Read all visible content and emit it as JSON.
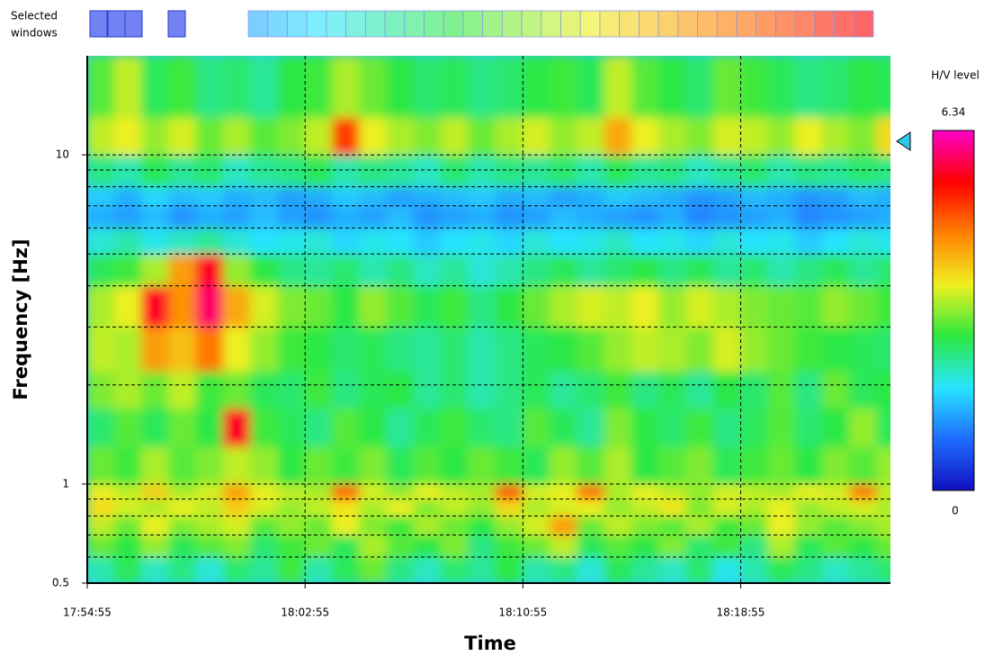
{
  "chart_data": {
    "type": "heatmap",
    "selected_windows_label": [
      "Selected",
      "windows"
    ],
    "xlabel": "Time",
    "ylabel": "Frequency [Hz]",
    "xlim": [
      "17:54:55",
      "18:24:25"
    ],
    "xticks": [
      "17:54:55",
      "18:02:55",
      "18:10:55",
      "18:18:55"
    ],
    "ylim": [
      0.5,
      20
    ],
    "yscale": "log",
    "yticks": [
      0.5,
      1,
      10
    ],
    "minor_yticks": [
      0.6,
      0.7,
      0.8,
      0.9,
      2,
      3,
      4,
      5,
      6,
      7,
      8,
      9
    ],
    "grid": true,
    "colorbar": {
      "title": "H/V level",
      "min": 0,
      "max": 6.34,
      "colors": [
        "#1010c0",
        "#1e6cff",
        "#28e6ff",
        "#2ce840",
        "#f0f020",
        "#ff8000",
        "#ff0000",
        "#ff00c8"
      ]
    },
    "time_edges": [
      "17:54:55",
      "17:55:55",
      "17:56:55",
      "17:57:55",
      "17:58:55",
      "17:59:55",
      "18:00:55",
      "18:01:55",
      "18:02:55",
      "18:03:55",
      "18:04:55",
      "18:05:55",
      "18:06:55",
      "18:07:55",
      "18:08:55",
      "18:09:55",
      "18:10:55",
      "18:11:55",
      "18:12:55",
      "18:13:55",
      "18:14:55",
      "18:15:55",
      "18:16:55",
      "18:17:55",
      "18:18:55",
      "18:19:55",
      "18:20:55",
      "18:21:55",
      "18:22:55",
      "18:23:55",
      "18:24:55"
    ],
    "freq_edges": [
      0.5,
      0.6,
      0.7,
      0.8,
      0.9,
      1,
      1.3,
      1.7,
      2.2,
      3,
      4,
      5,
      6,
      7,
      8,
      10,
      13,
      20
    ],
    "values": [
      [
        2.2,
        2.6,
        2.1,
        2.4,
        2.0,
        2.5,
        2.3,
        2.8,
        2.2,
        2.6,
        3.0,
        2.4,
        2.1,
        2.5,
        2.3,
        2.7,
        2.2,
        2.4,
        2.0,
        2.6,
        2.3,
        2.1,
        2.5,
        1.9,
        2.2,
        2.6,
        2.4,
        2.1,
        2.3,
        2.5
      ],
      [
        3.0,
        2.7,
        3.2,
        2.6,
        2.9,
        3.1,
        2.5,
        2.8,
        3.0,
        2.6,
        3.3,
        2.9,
        2.7,
        3.1,
        2.4,
        2.8,
        3.0,
        3.4,
        2.6,
        2.9,
        2.7,
        3.1,
        2.5,
        2.8,
        2.4,
        3.3,
        2.6,
        2.9,
        2.7,
        3.0
      ],
      [
        3.4,
        3.0,
        3.6,
        3.1,
        3.3,
        3.5,
        2.9,
        3.2,
        3.0,
        3.6,
        3.1,
        2.8,
        3.3,
        3.0,
        2.7,
        3.2,
        3.5,
        4.3,
        3.0,
        3.4,
        3.1,
        2.9,
        3.3,
        2.8,
        3.0,
        3.6,
        3.2,
        2.9,
        3.1,
        3.3
      ],
      [
        3.8,
        3.5,
        3.3,
        3.6,
        3.4,
        3.9,
        3.5,
        3.2,
        3.4,
        3.7,
        3.3,
        3.6,
        3.1,
        3.4,
        3.2,
        3.8,
        3.3,
        3.5,
        3.6,
        3.2,
        3.4,
        3.7,
        3.1,
        3.5,
        3.3,
        3.6,
        3.2,
        3.4,
        3.5,
        3.3
      ],
      [
        3.6,
        3.4,
        3.9,
        3.3,
        3.5,
        4.3,
        3.6,
        3.4,
        3.3,
        4.8,
        3.5,
        3.2,
        3.6,
        3.4,
        3.3,
        4.9,
        3.5,
        3.6,
        4.7,
        3.3,
        3.6,
        3.4,
        3.2,
        3.5,
        3.4,
        3.3,
        3.6,
        3.5,
        4.6,
        3.4
      ],
      [
        3.0,
        2.8,
        3.3,
        2.9,
        3.1,
        3.4,
        3.2,
        2.7,
        3.0,
        2.8,
        3.1,
        2.6,
        2.9,
        2.7,
        3.0,
        2.8,
        2.6,
        3.2,
        2.9,
        3.3,
        2.7,
        2.9,
        3.1,
        2.6,
        2.8,
        3.0,
        2.7,
        3.1,
        2.9,
        3.2
      ],
      [
        2.5,
        2.9,
        2.6,
        3.0,
        2.7,
        5.6,
        2.8,
        2.6,
        2.4,
        2.9,
        2.7,
        2.3,
        2.6,
        2.8,
        2.5,
        2.4,
        2.9,
        2.6,
        2.3,
        3.1,
        2.7,
        2.5,
        2.8,
        2.4,
        2.6,
        2.9,
        2.5,
        2.7,
        3.2,
        2.6
      ],
      [
        3.1,
        3.3,
        3.0,
        3.4,
        2.8,
        3.0,
        2.6,
        2.5,
        2.8,
        2.4,
        2.6,
        2.7,
        2.3,
        2.5,
        2.2,
        2.4,
        2.6,
        2.3,
        2.5,
        2.8,
        2.4,
        2.6,
        2.3,
        2.7,
        2.5,
        2.9,
        2.4,
        3.0,
        2.6,
        2.7
      ],
      [
        3.4,
        3.3,
        4.3,
        4.0,
        4.6,
        3.6,
        3.2,
        2.8,
        2.7,
        2.5,
        2.6,
        2.4,
        2.3,
        2.5,
        2.2,
        2.4,
        2.6,
        2.7,
        2.9,
        3.2,
        3.4,
        3.3,
        3.1,
        3.5,
        3.2,
        3.0,
        2.8,
        2.7,
        2.6,
        2.5
      ],
      [
        3.3,
        3.6,
        5.6,
        4.4,
        5.9,
        4.2,
        3.5,
        3.1,
        3.0,
        2.7,
        3.2,
        2.9,
        2.6,
        2.8,
        2.4,
        2.7,
        3.0,
        3.3,
        3.5,
        3.4,
        3.6,
        3.2,
        3.5,
        3.3,
        3.1,
        3.0,
        2.9,
        3.2,
        3.0,
        2.8
      ],
      [
        2.6,
        2.8,
        3.3,
        4.3,
        5.6,
        3.2,
        2.7,
        2.4,
        2.3,
        2.5,
        2.2,
        2.4,
        2.1,
        2.3,
        2.0,
        2.2,
        2.4,
        2.6,
        2.3,
        2.5,
        2.7,
        2.4,
        2.6,
        2.3,
        2.5,
        2.2,
        2.4,
        2.6,
        2.3,
        2.5
      ],
      [
        2.0,
        2.2,
        1.9,
        2.1,
        2.3,
        2.0,
        1.8,
        1.9,
        2.0,
        1.7,
        1.9,
        1.8,
        1.6,
        1.8,
        1.9,
        1.7,
        2.0,
        1.8,
        1.9,
        2.1,
        1.8,
        1.9,
        1.7,
        2.0,
        1.8,
        1.9,
        1.6,
        1.8,
        2.0,
        1.9
      ],
      [
        1.4,
        1.3,
        1.5,
        1.2,
        1.4,
        1.3,
        1.5,
        1.3,
        1.2,
        1.4,
        1.3,
        1.5,
        1.2,
        1.3,
        1.4,
        1.2,
        1.3,
        1.5,
        1.4,
        1.3,
        1.2,
        1.4,
        1.1,
        1.2,
        1.3,
        1.4,
        1.1,
        1.2,
        1.3,
        1.4
      ],
      [
        1.6,
        1.4,
        1.7,
        1.5,
        1.6,
        1.4,
        1.5,
        1.3,
        1.4,
        1.6,
        1.5,
        1.3,
        1.4,
        1.5,
        1.6,
        1.4,
        1.5,
        1.3,
        1.4,
        1.6,
        1.5,
        1.4,
        1.2,
        1.3,
        1.5,
        1.4,
        1.2,
        1.3,
        1.5,
        1.4
      ],
      [
        2.4,
        2.2,
        2.6,
        2.3,
        2.5,
        2.1,
        2.3,
        2.4,
        2.6,
        2.2,
        2.4,
        2.3,
        2.1,
        2.5,
        2.2,
        2.4,
        2.3,
        2.5,
        2.2,
        2.6,
        2.3,
        2.4,
        2.1,
        2.3,
        2.5,
        2.2,
        2.4,
        2.3,
        2.5,
        2.4
      ],
      [
        3.4,
        3.6,
        3.2,
        3.5,
        3.0,
        3.3,
        2.9,
        3.1,
        3.4,
        5.0,
        3.6,
        3.3,
        3.1,
        3.4,
        3.0,
        3.3,
        3.5,
        3.2,
        3.4,
        4.2,
        3.6,
        3.3,
        3.1,
        3.5,
        3.4,
        3.2,
        3.6,
        3.3,
        3.1,
        3.8
      ],
      [
        2.9,
        3.4,
        2.6,
        2.8,
        2.4,
        2.5,
        2.3,
        2.7,
        2.8,
        3.3,
        3.0,
        2.7,
        2.5,
        2.6,
        2.4,
        2.5,
        2.7,
        2.8,
        2.6,
        3.4,
        2.9,
        2.7,
        2.5,
        3.0,
        2.8,
        2.6,
        2.4,
        2.5,
        2.7,
        2.6
      ]
    ]
  }
}
